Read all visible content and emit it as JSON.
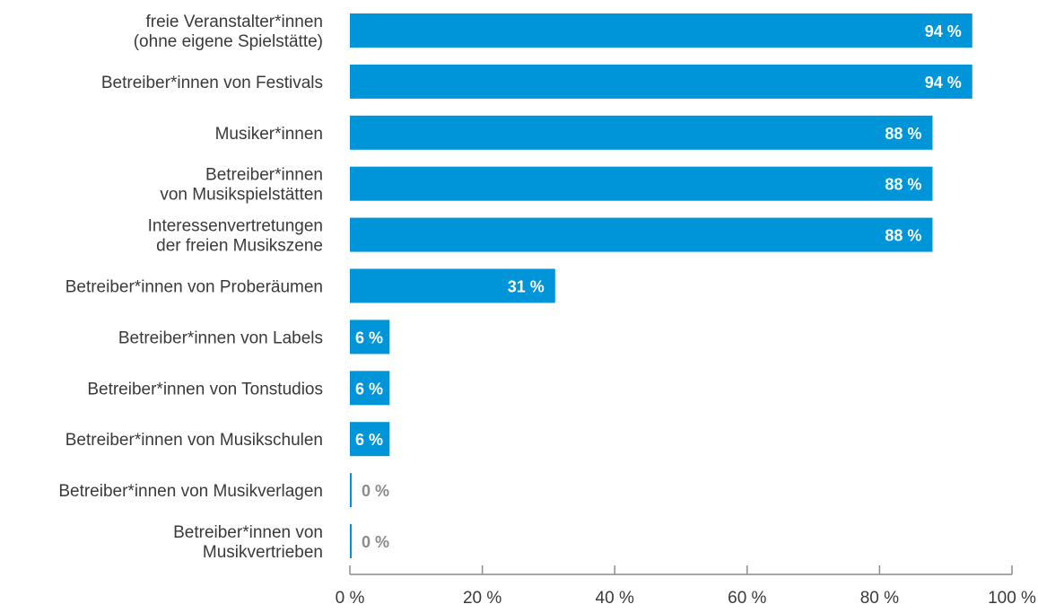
{
  "chart_data": {
    "type": "bar",
    "orientation": "horizontal",
    "categories": [
      [
        "freie Veranstalter*innen",
        "(ohne eigene Spielstätte)"
      ],
      [
        "Betreiber*innen von Festivals"
      ],
      [
        "Musiker*innen"
      ],
      [
        "Betreiber*innen",
        "von Musikspielstätten"
      ],
      [
        "Interessenvertretungen",
        "der freien Musikszene"
      ],
      [
        "Betreiber*innen von Proberäumen"
      ],
      [
        "Betreiber*innen von Labels"
      ],
      [
        "Betreiber*innen von Tonstudios"
      ],
      [
        "Betreiber*innen von Musikschulen"
      ],
      [
        "Betreiber*innen von Musikverlagen"
      ],
      [
        "Betreiber*innen von",
        "Musikvertrieben"
      ]
    ],
    "values": [
      94,
      94,
      88,
      88,
      88,
      31,
      6,
      6,
      6,
      0,
      0
    ],
    "value_labels": [
      "94 %",
      "94 %",
      "88 %",
      "88 %",
      "88 %",
      "31 %",
      "6 %",
      "6 %",
      "6 %",
      "0 %",
      "0 %"
    ],
    "xlim": [
      0,
      100
    ],
    "x_ticks": [
      0,
      20,
      40,
      60,
      80,
      100
    ],
    "x_tick_labels": [
      "0 %",
      "20 %",
      "40 %",
      "60 %",
      "80 %",
      "100 %"
    ],
    "bar_color": "#0095d9",
    "axis_color": "#8c8c8c",
    "grid": false
  }
}
